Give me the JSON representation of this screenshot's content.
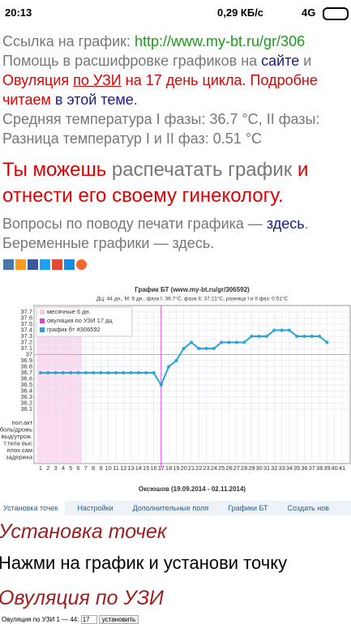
{
  "status_bar": {
    "time": "20:13",
    "speed": "0,29 КБ/с",
    "network": "4G"
  },
  "intro": [
    [
      {
        "text": "Ссылка на график: ",
        "style": "grey"
      },
      {
        "text": "http://www.my-bt.ru/gr/306",
        "style": "url"
      }
    ],
    [
      {
        "text": "Помощь в расшифровке графиков на ",
        "style": "grey"
      },
      {
        "text": "сайте",
        "style": "link"
      },
      {
        "text": " и",
        "style": "grey"
      }
    ],
    [
      {
        "text": "Овуляция ",
        "style": "red"
      },
      {
        "text": "по УЗИ",
        "style": "red-link"
      },
      {
        "text": " на 17 день цикла. Подробне",
        "style": "red"
      }
    ],
    [
      {
        "text": "читаем",
        "style": "red"
      },
      {
        "text": " в этой теме",
        "style": "link"
      },
      {
        "text": ".",
        "style": "red"
      }
    ],
    [
      {
        "text": "Средняя температура I фазы: 36.7 °C, II фазы:",
        "style": "grey"
      }
    ],
    [
      {
        "text": "Разница температур I и II фаз: 0.51 °C",
        "style": "grey"
      }
    ]
  ],
  "notice": [
    [
      {
        "text": "Ты можешь",
        "style": "red"
      },
      {
        "text": " распечатать график ",
        "style": "grey"
      },
      {
        "text": "и",
        "style": "red"
      }
    ],
    [
      {
        "text": "отнести его своему гинекологу.",
        "style": "red"
      }
    ]
  ],
  "links": [
    [
      {
        "text": "Вопросы по поводу печати графика — ",
        "style": "grey"
      },
      {
        "text": "здесь",
        "style": "link"
      },
      {
        "text": ".",
        "style": "grey"
      }
    ],
    [
      {
        "text": "Беременные графики — здесь.",
        "style": "grey"
      }
    ]
  ],
  "chart_data": {
    "type": "line",
    "title": "График БТ (www.my-bt.ru/gr/306592)",
    "subtitle": "ДЦ: 44 дн., М: 6 дн., фаза I: 36.7°C, фаза II: 37.21°C, разница I и II фаз: 0.51°C",
    "x": [
      1,
      2,
      3,
      4,
      5,
      6,
      7,
      8,
      9,
      10,
      11,
      12,
      13,
      14,
      15,
      16,
      17,
      18,
      19,
      20,
      21,
      22,
      23,
      24,
      25,
      26,
      27,
      28,
      29,
      30,
      31,
      32,
      33,
      34,
      35,
      36,
      37,
      38,
      39,
      40,
      41
    ],
    "series": [
      {
        "name": "график бт #306592",
        "color": "#29a3dc",
        "values": [
          36.7,
          36.7,
          36.7,
          36.7,
          36.7,
          36.7,
          36.7,
          36.7,
          36.7,
          36.7,
          36.7,
          36.7,
          36.7,
          36.7,
          36.7,
          36.7,
          36.5,
          36.8,
          36.9,
          37.1,
          37.2,
          37.1,
          37.1,
          37.1,
          37.2,
          37.2,
          37.2,
          37.2,
          37.3,
          37.3,
          37.3,
          37.4,
          37.4,
          37.4,
          37.3,
          37.3,
          37.3,
          37.3,
          37.2,
          null,
          null
        ]
      }
    ],
    "ylim": [
      36.1,
      37.7
    ],
    "yticks": [
      36.1,
      36.2,
      36.3,
      36.4,
      36.5,
      36.6,
      36.7,
      36.8,
      36.9,
      37,
      37.1,
      37.2,
      37.3,
      37.4,
      37.5,
      37.6,
      37.7
    ],
    "grid": true,
    "legend": [
      {
        "name": "месячные 6 дн.",
        "color": "#f7c6e3"
      },
      {
        "name": "овуляция по УЗИ 17 дц",
        "color": "#e040e0"
      }
    ],
    "shade_days": [
      1,
      6
    ],
    "ovulation_day": 17,
    "coverline": 37,
    "row_labels": [
      "пол.акт",
      "боль/дрожь",
      "выд/утрож.",
      "т.тела выс",
      "плох.сам",
      "задержка"
    ],
    "footer": "Оксюшов (19.09.2014 - 02.11.2014)"
  },
  "tabs": [
    "Установка точек",
    "Настройки",
    "Дополнительные поля",
    "Графики БТ",
    "Создать нов"
  ],
  "section": {
    "heading": "Установка точек",
    "instruction": "Нажми на график и установи точку",
    "subheading": "Овуляция по УЗИ",
    "field_label": "Овуляция по УЗИ 1 — 44:",
    "field_value": "17",
    "button": "установить"
  }
}
